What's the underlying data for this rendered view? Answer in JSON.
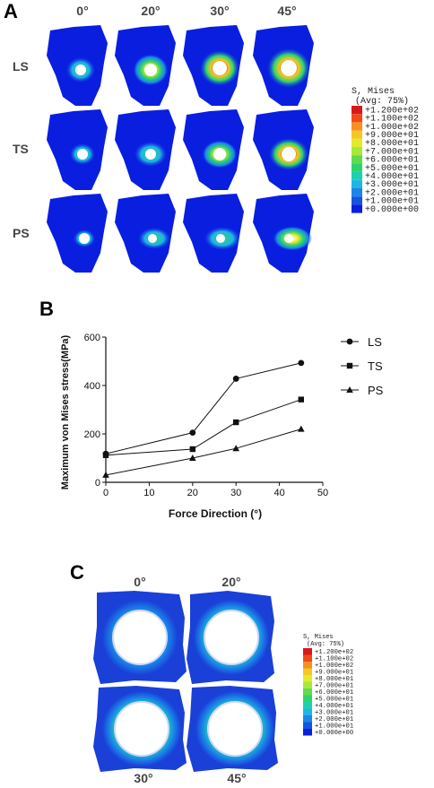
{
  "panel_a": {
    "letter": "A",
    "angles": [
      "0°",
      "20°",
      "30°",
      "45°"
    ],
    "rows": [
      "LS",
      "TS",
      "PS"
    ],
    "legend_title": "S, Mises",
    "legend_subtitle": "(Avg: 75%)",
    "legend_values": [
      "+1.200e+02",
      "+1.100e+02",
      "+1.000e+02",
      "+9.000e+01",
      "+8.000e+01",
      "+7.000e+01",
      "+6.000e+01",
      "+5.000e+01",
      "+4.000e+01",
      "+3.000e+01",
      "+2.000e+01",
      "+1.000e+01",
      "+0.000e+00"
    ],
    "legend_colors": [
      "#d7191c",
      "#f04a1a",
      "#f98f20",
      "#f7c622",
      "#e3ea2b",
      "#a8e83b",
      "#5fdc4c",
      "#2ed36e",
      "#1fd0b0",
      "#1fb6e6",
      "#1a86e8",
      "#1454e0",
      "#0a1ee0"
    ]
  },
  "panel_b": {
    "letter": "B"
  },
  "chart_data": {
    "type": "line",
    "xlabel": "Force Direction (°)",
    "ylabel": "Maximum von Mises stress(MPa)",
    "xlim": [
      0,
      50
    ],
    "ylim": [
      0,
      600
    ],
    "xticks": [
      "0",
      "10",
      "20",
      "30",
      "40",
      "50"
    ],
    "yticks": [
      "0",
      "200",
      "400",
      "600"
    ],
    "x": [
      0,
      20,
      30,
      45
    ],
    "legend_position": "top-right",
    "series": [
      {
        "name": "LS",
        "marker": "circle",
        "values": [
          118,
          205,
          428,
          493
        ]
      },
      {
        "name": "TS",
        "marker": "square",
        "values": [
          112,
          137,
          248,
          342
        ]
      },
      {
        "name": "PS",
        "marker": "triangle",
        "values": [
          30,
          100,
          140,
          220
        ]
      }
    ]
  },
  "panel_c": {
    "letter": "C",
    "top_angles": [
      "0°",
      "20°"
    ],
    "bottom_angles": [
      "30°",
      "45°"
    ],
    "legend_title": "S, Mises",
    "legend_subtitle": "(Avg: 75%)",
    "legend_values": [
      "+1.200e+02",
      "+1.100e+02",
      "+1.000e+02",
      "+9.000e+01",
      "+8.000e+01",
      "+7.000e+01",
      "+6.000e+01",
      "+5.000e+01",
      "+4.000e+01",
      "+3.000e+01",
      "+2.000e+01",
      "+1.000e+01",
      "+0.000e+00"
    ]
  }
}
